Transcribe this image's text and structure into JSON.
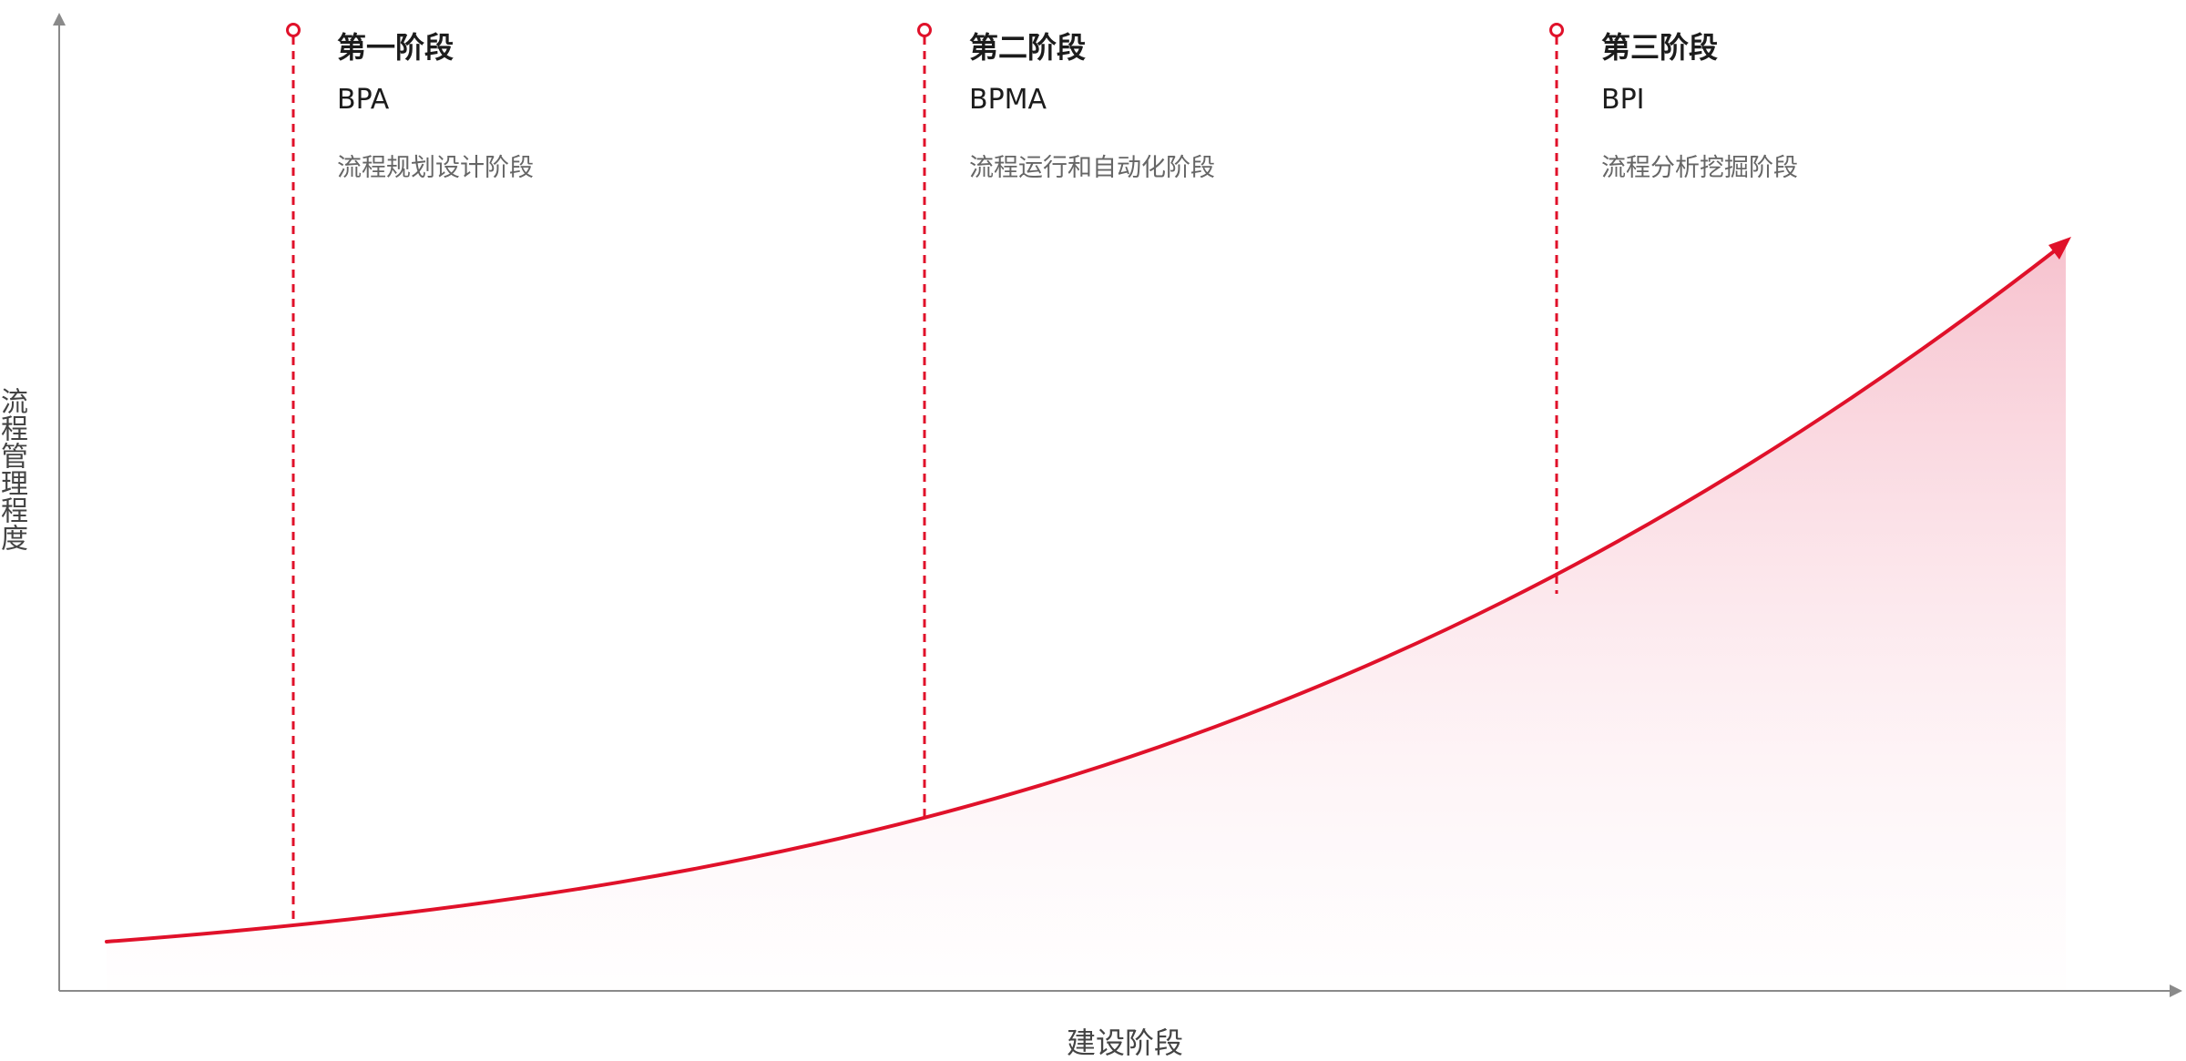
{
  "y_axis_label": "流程管理程度",
  "x_axis_label": "建设阶段",
  "phases": [
    {
      "title": "第一阶段",
      "code": "BPA",
      "desc": "流程规划设计阶段"
    },
    {
      "title": "第二阶段",
      "code": "BPMA",
      "desc": "流程运行和自动化阶段"
    },
    {
      "title": "第三阶段",
      "code": "BPI",
      "desc": "流程分析挖掘阶段"
    }
  ],
  "colors": {
    "accent": "#e0112a",
    "axis": "#8a8a8a",
    "area_fill": "#f7c9d3"
  }
}
